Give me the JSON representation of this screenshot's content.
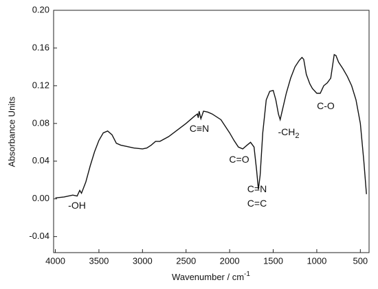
{
  "chart_data": {
    "type": "line",
    "x_label": {
      "text": "Wavenumber / cm",
      "sup": "-1"
    },
    "y_label": "Absorbance Units",
    "xlim": [
      4020,
      400
    ],
    "ylim": [
      -0.057,
      0.2
    ],
    "xticks": [
      4000,
      3500,
      3000,
      2500,
      2000,
      1500,
      1000,
      500
    ],
    "yticks": [
      {
        "value": 0.2,
        "label": "0.20"
      },
      {
        "value": 0.16,
        "label": "0.16"
      },
      {
        "value": 0.12,
        "label": "0.12"
      },
      {
        "value": 0.08,
        "label": "0.08"
      },
      {
        "value": 0.04,
        "label": "0.04"
      },
      {
        "value": 0,
        "label": "0.00"
      },
      {
        "value": -0.04,
        "label": "-0.04"
      }
    ],
    "x": [
      4000,
      3900,
      3800,
      3750,
      3720,
      3700,
      3650,
      3600,
      3550,
      3500,
      3450,
      3400,
      3350,
      3300,
      3250,
      3200,
      3100,
      3000,
      2950,
      2900,
      2850,
      2800,
      2700,
      2600,
      2500,
      2400,
      2370,
      2360,
      2350,
      2330,
      2300,
      2250,
      2200,
      2100,
      2000,
      1950,
      1900,
      1850,
      1800,
      1760,
      1720,
      1690,
      1670,
      1650,
      1620,
      1580,
      1540,
      1500,
      1470,
      1440,
      1420,
      1400,
      1350,
      1300,
      1250,
      1200,
      1170,
      1150,
      1120,
      1080,
      1050,
      1000,
      960,
      920,
      880,
      840,
      800,
      780,
      750,
      700,
      650,
      600,
      550,
      500,
      460,
      430
    ],
    "series": [
      {
        "color": "#111111",
        "values": [
          0.001,
          0.002,
          0.004,
          0.003,
          0.009,
          0.006,
          0.018,
          0.035,
          0.05,
          0.062,
          0.07,
          0.072,
          0.068,
          0.059,
          0.057,
          0.056,
          0.054,
          0.053,
          0.054,
          0.057,
          0.061,
          0.061,
          0.066,
          0.073,
          0.08,
          0.088,
          0.09,
          0.086,
          0.093,
          0.085,
          0.093,
          0.092,
          0.09,
          0.084,
          0.07,
          0.062,
          0.055,
          0.053,
          0.057,
          0.06,
          0.055,
          0.03,
          0.01,
          0.025,
          0.07,
          0.105,
          0.114,
          0.115,
          0.105,
          0.09,
          0.084,
          0.092,
          0.112,
          0.128,
          0.14,
          0.147,
          0.15,
          0.148,
          0.132,
          0.122,
          0.117,
          0.112,
          0.112,
          0.12,
          0.123,
          0.128,
          0.153,
          0.152,
          0.145,
          0.138,
          0.13,
          0.12,
          0.105,
          0.08,
          0.04,
          0.005
        ]
      }
    ],
    "annotations": [
      {
        "text": "-OH"
      },
      {
        "text": "C≡N"
      },
      {
        "text": "C=O"
      },
      {
        "text": "C=N"
      },
      {
        "text": "C=C"
      },
      {
        "text": "-CH",
        "sub": "2"
      },
      {
        "text": "C-O"
      }
    ]
  }
}
